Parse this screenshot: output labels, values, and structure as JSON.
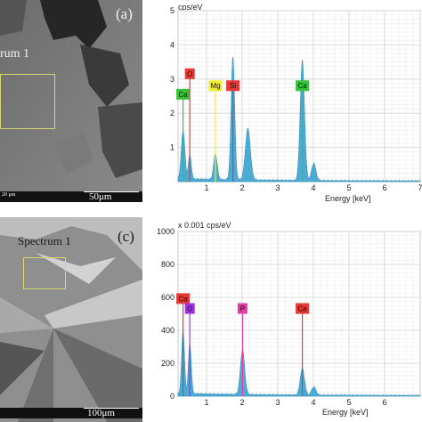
{
  "panel_a": {
    "label": "(a)",
    "spectrum_label": "rum 1",
    "scalebar_left": "20 μm",
    "scalebar_right": "50μm"
  },
  "panel_c": {
    "label": "(c)",
    "spectrum_label": "Spectrum 1",
    "scalebar_right": "100μm"
  },
  "chart_data": [
    {
      "type": "line",
      "title": "",
      "ylabel": "cps/eV",
      "xlabel": "Energy [keV]",
      "xlim": [
        0.2,
        7.0
      ],
      "ylim": [
        0,
        5.0
      ],
      "x_ticks": [
        1,
        2,
        3,
        4,
        5,
        6,
        7
      ],
      "x_tick_labels": [
        "1",
        "2",
        "3",
        "4",
        "5",
        "6",
        "7"
      ],
      "y_ticks": [
        1,
        2,
        3,
        4,
        5
      ],
      "y_tick_labels": [
        "1",
        "2",
        "3",
        "4",
        "5"
      ],
      "grid": true,
      "fill_color": "#3aa3d0",
      "peaks": [
        {
          "x": 0.34,
          "height": 1.4,
          "width": 0.05
        },
        {
          "x": 0.53,
          "height": 0.7,
          "width": 0.04
        },
        {
          "x": 1.25,
          "height": 0.75,
          "width": 0.05
        },
        {
          "x": 1.74,
          "height": 3.6,
          "width": 0.05
        },
        {
          "x": 2.16,
          "height": 1.5,
          "width": 0.07
        },
        {
          "x": 3.69,
          "height": 3.5,
          "width": 0.06
        },
        {
          "x": 4.01,
          "height": 0.5,
          "width": 0.06
        }
      ],
      "elements": [
        {
          "label": "Ca",
          "x": 0.34,
          "label_level": 2.4,
          "color": "#36c23a"
        },
        {
          "label": "O",
          "x": 0.53,
          "label_level": 3.0,
          "color": "#e53935"
        },
        {
          "label": "Mg",
          "x": 1.25,
          "label_level": 2.65,
          "color": "#f2ef2e"
        },
        {
          "label": "Si",
          "x": 1.74,
          "label_level": 2.65,
          "color": "#e53935"
        },
        {
          "label": "Ca",
          "x": 3.69,
          "label_level": 2.65,
          "color": "#36c23a"
        }
      ]
    },
    {
      "type": "line",
      "title": "",
      "ylabel": "x 0.001 cps/eV",
      "xlabel": "Energy [keV]",
      "xlim": [
        0.2,
        7.0
      ],
      "ylim": [
        0,
        1000
      ],
      "x_ticks": [
        1,
        2,
        3,
        4,
        5,
        6
      ],
      "x_tick_labels": [
        "1",
        "2",
        "3",
        "4",
        "5",
        "6"
      ],
      "y_ticks": [
        0,
        200,
        400,
        600,
        800,
        1000
      ],
      "y_tick_labels": [
        "0",
        "200",
        "400",
        "600",
        "800",
        "1000"
      ],
      "grid": true,
      "fill_color": "#3aa3d0",
      "peaks": [
        {
          "x": 0.34,
          "height": 380,
          "width": 0.04
        },
        {
          "x": 0.53,
          "height": 300,
          "width": 0.04
        },
        {
          "x": 2.01,
          "height": 270,
          "width": 0.06
        },
        {
          "x": 3.69,
          "height": 160,
          "width": 0.06
        },
        {
          "x": 4.01,
          "height": 50,
          "width": 0.06
        }
      ],
      "elements": [
        {
          "label": "Ca",
          "x": 0.34,
          "label_level": 560,
          "color": "#e53935"
        },
        {
          "label": "O",
          "x": 0.53,
          "label_level": 500,
          "color": "#9b33e0"
        },
        {
          "label": "P",
          "x": 2.01,
          "label_level": 500,
          "color": "#e83aa8"
        },
        {
          "label": "Ca",
          "x": 3.69,
          "label_level": 500,
          "color": "#e53935"
        }
      ]
    }
  ]
}
